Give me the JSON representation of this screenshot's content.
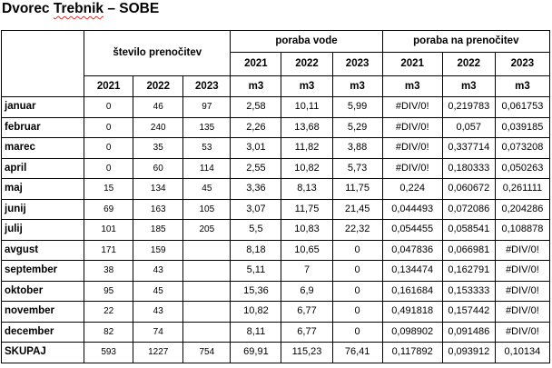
{
  "title_part1": "Dvorec ",
  "title_part2": "Trebnik",
  "title_part3": " – SOBE",
  "headers": {
    "nights_group": "število prenočitev",
    "water_group": "poraba vode",
    "per_night_group": "poraba na prenočitev",
    "years": [
      "2021",
      "2022",
      "2023"
    ],
    "unit": "m3"
  },
  "rows": [
    {
      "month": "januar",
      "nights": [
        "0",
        "46",
        "97"
      ],
      "water": [
        "2,58",
        "10,11",
        "5,99"
      ],
      "per_night": [
        "#DIV/0!",
        "0,219783",
        "0,061753"
      ]
    },
    {
      "month": "februar",
      "nights": [
        "0",
        "240",
        "135"
      ],
      "water": [
        "2,26",
        "13,68",
        "5,29"
      ],
      "per_night": [
        "#DIV/0!",
        "0,057",
        "0,039185"
      ]
    },
    {
      "month": "marec",
      "nights": [
        "0",
        "35",
        "53"
      ],
      "water": [
        "3,01",
        "11,82",
        "3,88"
      ],
      "per_night": [
        "#DIV/0!",
        "0,337714",
        "0,073208"
      ]
    },
    {
      "month": "april",
      "nights": [
        "0",
        "60",
        "114"
      ],
      "water": [
        "2,55",
        "10,82",
        "5,73"
      ],
      "per_night": [
        "#DIV/0!",
        "0,180333",
        "0,050263"
      ]
    },
    {
      "month": "maj",
      "nights": [
        "15",
        "134",
        "45"
      ],
      "water": [
        "3,36",
        "8,13",
        "11,75"
      ],
      "per_night": [
        "0,224",
        "0,060672",
        "0,261111"
      ]
    },
    {
      "month": "junij",
      "nights": [
        "69",
        "163",
        "105"
      ],
      "water": [
        "3,07",
        "11,75",
        "21,45"
      ],
      "per_night": [
        "0,044493",
        "0,072086",
        "0,204286"
      ]
    },
    {
      "month": "julij",
      "nights": [
        "101",
        "185",
        "205"
      ],
      "water": [
        "5,5",
        "10,83",
        "22,32"
      ],
      "per_night": [
        "0,054455",
        "0,058541",
        "0,108878"
      ]
    },
    {
      "month": "avgust",
      "nights": [
        "171",
        "159",
        ""
      ],
      "water": [
        "8,18",
        "10,65",
        "0"
      ],
      "per_night": [
        "0,047836",
        "0,066981",
        "#DIV/0!"
      ]
    },
    {
      "month": "september",
      "nights": [
        "38",
        "43",
        ""
      ],
      "water": [
        "5,11",
        "7",
        "0"
      ],
      "per_night": [
        "0,134474",
        "0,162791",
        "#DIV/0!"
      ]
    },
    {
      "month": "oktober",
      "nights": [
        "95",
        "45",
        ""
      ],
      "water": [
        "15,36",
        "6,9",
        "0"
      ],
      "per_night": [
        "0,161684",
        "0,153333",
        "#DIV/0!"
      ]
    },
    {
      "month": "november",
      "nights": [
        "22",
        "43",
        ""
      ],
      "water": [
        "10,82",
        "6,77",
        "0"
      ],
      "per_night": [
        "0,491818",
        "0,157442",
        "#DIV/0!"
      ]
    },
    {
      "month": "december",
      "nights": [
        "82",
        "74",
        ""
      ],
      "water": [
        "8,11",
        "6,77",
        "0"
      ],
      "per_night": [
        "0,098902",
        "0,091486",
        "#DIV/0!"
      ]
    },
    {
      "month": "SKUPAJ",
      "nights": [
        "593",
        "1227",
        "754"
      ],
      "water": [
        "69,91",
        "115,23",
        "76,41"
      ],
      "per_night": [
        "0,117892",
        "0,093912",
        "0,10134"
      ]
    }
  ]
}
